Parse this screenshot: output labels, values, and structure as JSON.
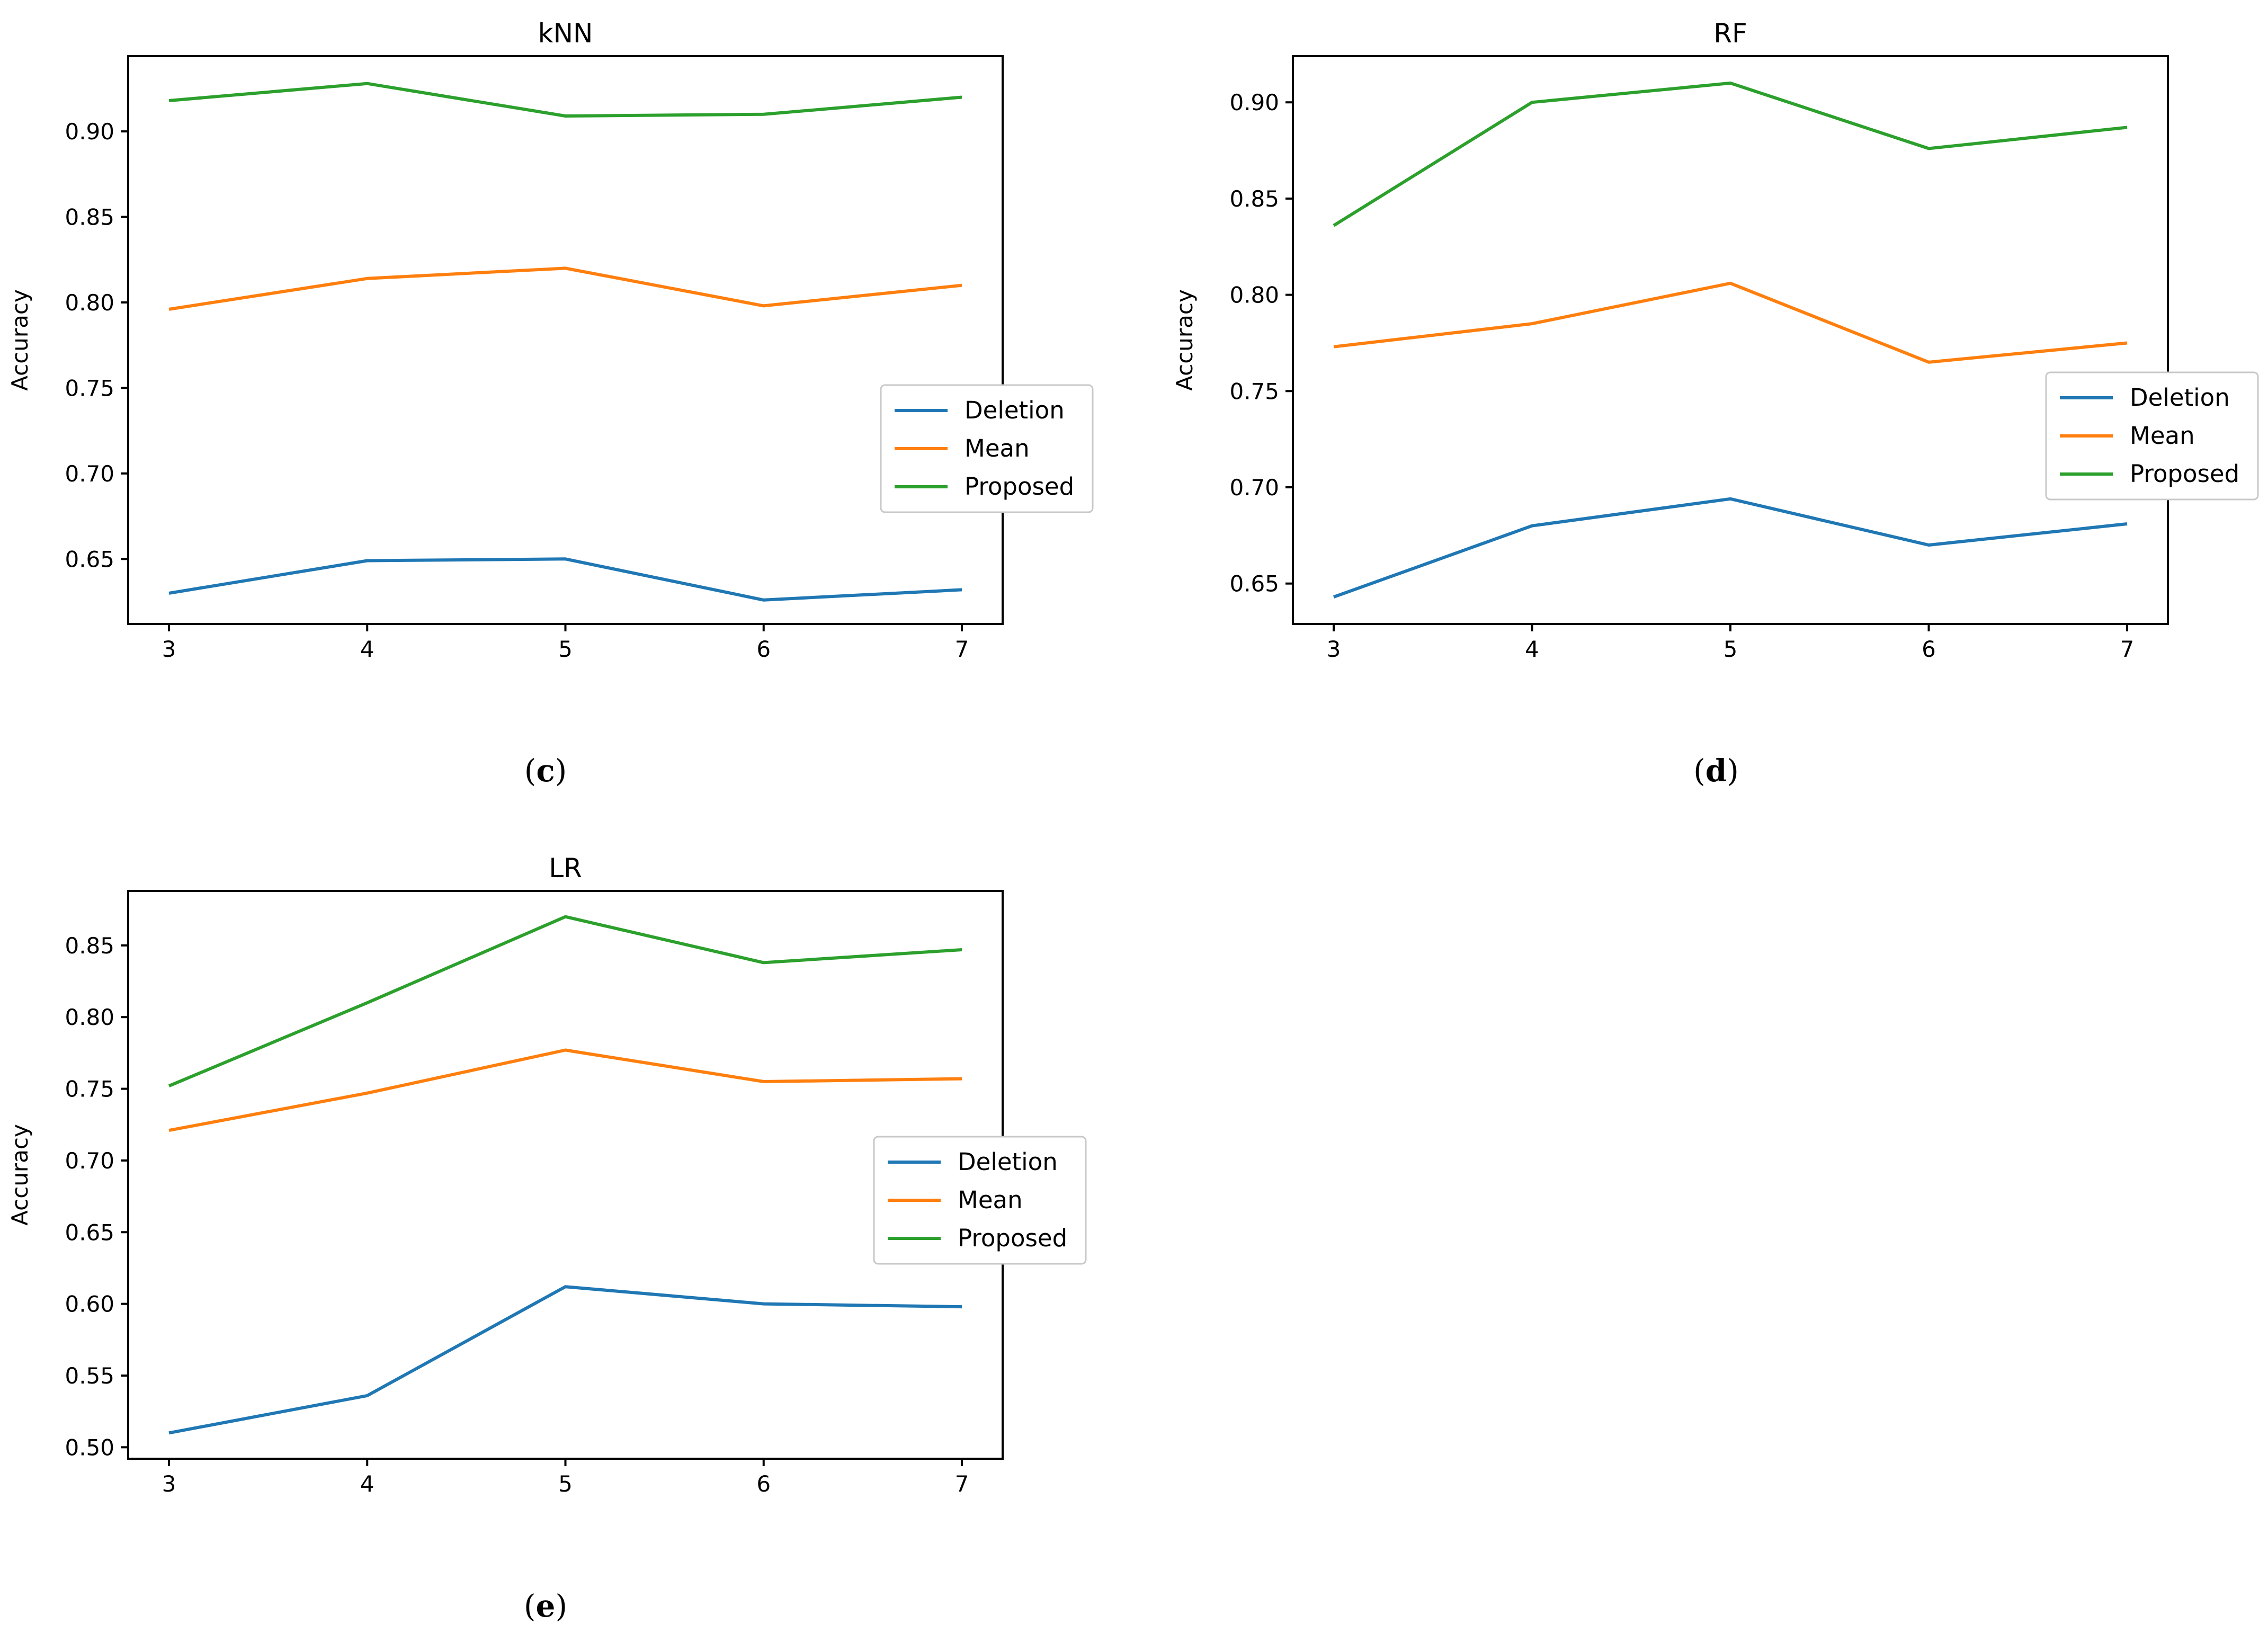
{
  "chart_data": [
    {
      "type": "line",
      "title": "kNN",
      "caption_letter": "c",
      "xlabel": "",
      "ylabel": "Accuracy",
      "x": [
        3,
        4,
        5,
        6,
        7
      ],
      "xticks": [
        "3",
        "4",
        "5",
        "6",
        "7"
      ],
      "yticks": [
        "0.65",
        "0.70",
        "0.75",
        "0.80",
        "0.85",
        "0.90"
      ],
      "ylim": [
        0.612,
        0.944
      ],
      "legend_position": "center-right",
      "series": [
        {
          "name": "Deletion",
          "color": "#1f77b4",
          "values": [
            0.63,
            0.649,
            0.65,
            0.626,
            0.632
          ]
        },
        {
          "name": "Mean",
          "color": "#ff7f0e",
          "values": [
            0.796,
            0.814,
            0.82,
            0.798,
            0.81
          ]
        },
        {
          "name": "Proposed",
          "color": "#2ca02c",
          "values": [
            0.918,
            0.928,
            0.909,
            0.91,
            0.92
          ]
        }
      ]
    },
    {
      "type": "line",
      "title": "RF",
      "caption_letter": "d",
      "xlabel": "",
      "ylabel": "Accuracy",
      "x": [
        3,
        4,
        5,
        6,
        7
      ],
      "xticks": [
        "3",
        "4",
        "5",
        "6",
        "7"
      ],
      "yticks": [
        "0.65",
        "0.70",
        "0.75",
        "0.80",
        "0.85",
        "0.90"
      ],
      "ylim": [
        0.629,
        0.924
      ],
      "legend_position": "center-right",
      "series": [
        {
          "name": "Deletion",
          "color": "#1f77b4",
          "values": [
            0.643,
            0.68,
            0.694,
            0.67,
            0.681
          ]
        },
        {
          "name": "Mean",
          "color": "#ff7f0e",
          "values": [
            0.773,
            0.785,
            0.806,
            0.765,
            0.775
          ]
        },
        {
          "name": "Proposed",
          "color": "#2ca02c",
          "values": [
            0.836,
            0.9,
            0.91,
            0.876,
            0.887
          ]
        }
      ]
    },
    {
      "type": "line",
      "title": "LR",
      "caption_letter": "e",
      "xlabel": "",
      "ylabel": "Accuracy",
      "x": [
        3,
        4,
        5,
        6,
        7
      ],
      "xticks": [
        "3",
        "4",
        "5",
        "6",
        "7"
      ],
      "yticks": [
        "0.50",
        "0.55",
        "0.60",
        "0.65",
        "0.70",
        "0.75",
        "0.80",
        "0.85"
      ],
      "ylim": [
        0.492,
        0.888
      ],
      "legend_position": "center-right",
      "series": [
        {
          "name": "Deletion",
          "color": "#1f77b4",
          "values": [
            0.51,
            0.536,
            0.612,
            0.6,
            0.598
          ]
        },
        {
          "name": "Mean",
          "color": "#ff7f0e",
          "values": [
            0.721,
            0.747,
            0.777,
            0.755,
            0.757
          ]
        },
        {
          "name": "Proposed",
          "color": "#2ca02c",
          "values": [
            0.752,
            0.81,
            0.87,
            0.838,
            0.847
          ]
        }
      ]
    }
  ]
}
